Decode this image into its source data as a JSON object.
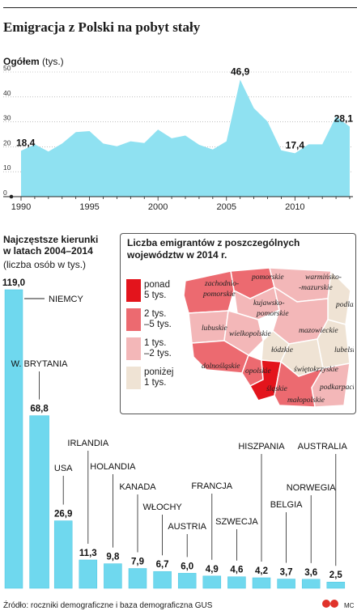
{
  "title": "Emigracja z Polski na pobyt stały",
  "area_chart": {
    "label": "Ogółem",
    "unit": "(tys.)"
  },
  "bars_section": {
    "title_line1": "Najczęstsze kierunki",
    "title_line2": "w latach 2004–2014",
    "subtitle": "(liczba osób w tys.)"
  },
  "inset": {
    "title_line1": "Liczba emigrantów z poszczególnych",
    "title_line2": "województw w 2014 r.",
    "legend": [
      {
        "line1": "ponad",
        "line2": "5 tys.",
        "color": "#e3141c"
      },
      {
        "line1": "2 tys.",
        "line2": "–5 tys.",
        "color": "#ec6a70"
      },
      {
        "line1": "1 tys.",
        "line2": "–2 tys.",
        "color": "#f3b7b8"
      },
      {
        "line1": "poniżej",
        "line2": "1 tys.",
        "color": "#efe3d4"
      }
    ],
    "regions": [
      {
        "name": "pomorskie",
        "level": 1
      },
      {
        "name": "zachodnio-pomorskie",
        "level": 1
      },
      {
        "name": "warmińsko-mazurskie",
        "level": 2
      },
      {
        "name": "kujawsko-pomorskie",
        "level": 2
      },
      {
        "name": "podlaskie",
        "level": 3
      },
      {
        "name": "lubuskie",
        "level": 2
      },
      {
        "name": "wielkopolskie",
        "level": 2
      },
      {
        "name": "mazowieckie",
        "level": 2
      },
      {
        "name": "łódzkie",
        "level": 3
      },
      {
        "name": "lubelskie",
        "level": 3
      },
      {
        "name": "dolnośląskie",
        "level": 1
      },
      {
        "name": "opolskie",
        "level": 1
      },
      {
        "name": "świętokrzyskie",
        "level": 3
      },
      {
        "name": "śląskie",
        "level": 0
      },
      {
        "name": "podkarpackie",
        "level": 2
      },
      {
        "name": "małopolskie",
        "level": 1
      }
    ]
  },
  "footer": "Źródło: roczniki demograficzne i baza demograficzna GUS",
  "logo_text": "MC",
  "colors": {
    "area": "#8fe1f1",
    "bar": "#6fd8ee",
    "bar_dark": "#4bc6e2",
    "grid": "#9a9a9a"
  },
  "chart_data": [
    {
      "type": "area",
      "x": [
        1990,
        1991,
        1992,
        1993,
        1994,
        1995,
        1996,
        1997,
        1998,
        1999,
        2000,
        2001,
        2002,
        2003,
        2004,
        2005,
        2006,
        2007,
        2008,
        2009,
        2010,
        2011,
        2012,
        2013,
        2014
      ],
      "values": [
        18.4,
        21.0,
        18.1,
        21.3,
        25.9,
        26.3,
        21.3,
        20.2,
        22.2,
        21.5,
        26.9,
        23.4,
        24.5,
        20.8,
        18.9,
        22.2,
        46.9,
        35.5,
        30.1,
        18.6,
        17.4,
        21.0,
        21.0,
        32.1,
        28.1
      ],
      "annotated": [
        {
          "x": 1990,
          "label": "18,4"
        },
        {
          "x": 2006,
          "label": "46,9"
        },
        {
          "x": 2010,
          "label": "17,4"
        },
        {
          "x": 2014,
          "label": "28,1"
        }
      ],
      "xticks": [
        1990,
        1995,
        2000,
        2005,
        2010
      ],
      "xtick_labels": [
        "1990",
        "1995",
        "2000",
        "2005",
        "2010"
      ],
      "yticks": [
        0,
        10,
        20,
        30,
        40,
        50
      ],
      "ytick_labels": [
        "0",
        "10",
        "20",
        "30",
        "40",
        "50"
      ],
      "ylim": [
        0,
        50
      ],
      "grid": true
    },
    {
      "type": "bar",
      "categories": [
        "NIEMCY",
        "W. BRYTANIA",
        "USA",
        "IRLANDIA",
        "HOLANDIA",
        "KANADA",
        "WŁOCHY",
        "AUSTRIA",
        "FRANCJA",
        "SZWECJA",
        "HISZPANIA",
        "BELGIA",
        "NORWEGIA",
        "AUSTRALIA"
      ],
      "values": [
        119.0,
        68.8,
        26.9,
        11.3,
        9.8,
        7.9,
        6.7,
        6.0,
        4.9,
        4.6,
        4.2,
        3.7,
        3.6,
        2.5
      ],
      "value_labels": [
        "119,0",
        "68,8",
        "26,9",
        "11,3",
        "9,8",
        "7,9",
        "6,7",
        "6,0",
        "4,9",
        "4,6",
        "4,2",
        "3,7",
        "3,6",
        "2,5"
      ]
    }
  ]
}
